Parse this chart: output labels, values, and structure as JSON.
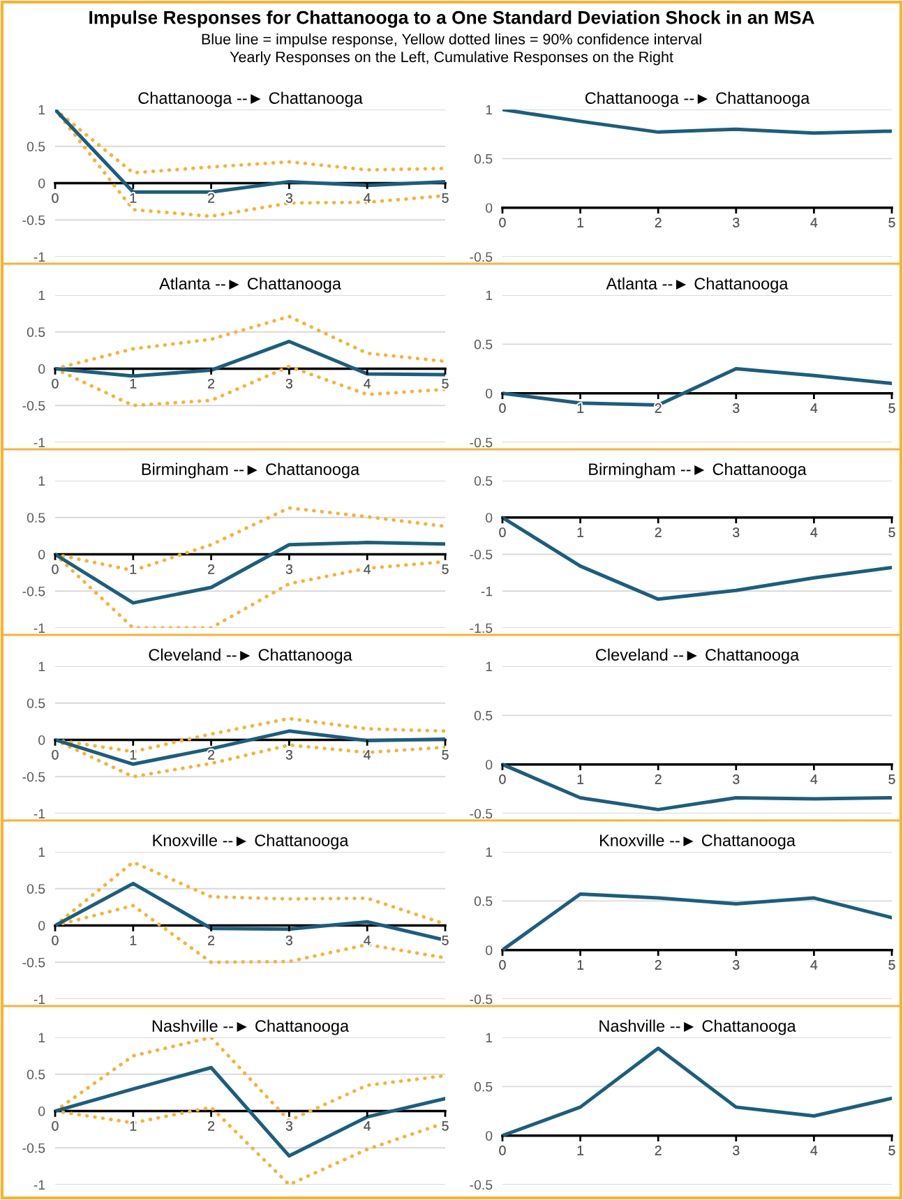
{
  "chart_data": [
    {
      "type": "other",
      "title": "Impulse Responses for Chattanooga to a One Standard Deviation Shock in an MSA",
      "subtitle": "Blue line = impulse response, Yellow dotted lines = 90% confidence interval\nYearly Responses on the Left, Cumulative Responses on the Right"
    },
    {
      "type": "line",
      "title": "Chattanooga --► Chattanooga",
      "x": [
        0,
        1,
        2,
        3,
        4,
        5
      ],
      "xlim": [
        0,
        5
      ],
      "xticks": [
        0,
        1,
        2,
        3,
        4,
        5
      ],
      "ylim": [
        -1,
        1
      ],
      "yticks": [
        -1,
        -0.5,
        0,
        0.5,
        1
      ],
      "grid": "y",
      "series": [
        {
          "color": "#1b5e7e",
          "line_style": "solid",
          "values": [
            1,
            -0.12,
            -0.12,
            0.02,
            -0.03,
            0.02
          ]
        },
        {
          "color": "#f9b233",
          "line_style": "dotted",
          "values": [
            1,
            0.14,
            0.22,
            0.29,
            0.18,
            0.2
          ]
        },
        {
          "color": "#f9b233",
          "line_style": "dotted",
          "values": [
            1,
            -0.36,
            -0.45,
            -0.27,
            -0.26,
            -0.17
          ]
        }
      ]
    },
    {
      "type": "line",
      "title": "Chattanooga --► Chattanooga",
      "x": [
        0,
        1,
        2,
        3,
        4,
        5
      ],
      "xlim": [
        0,
        5
      ],
      "xticks": [
        0,
        1,
        2,
        3,
        4,
        5
      ],
      "ylim": [
        -0.5,
        1
      ],
      "yticks": [
        -0.5,
        0,
        0.5,
        1
      ],
      "grid": "y",
      "series": [
        {
          "color": "#1b5e7e",
          "line_style": "solid",
          "values": [
            1,
            0.88,
            0.77,
            0.8,
            0.76,
            0.78
          ]
        }
      ]
    },
    {
      "type": "line",
      "title": "Atlanta --► Chattanooga",
      "x": [
        0,
        1,
        2,
        3,
        4,
        5
      ],
      "xlim": [
        0,
        5
      ],
      "xticks": [
        0,
        1,
        2,
        3,
        4,
        5
      ],
      "ylim": [
        -1,
        1
      ],
      "yticks": [
        -1,
        -0.5,
        0,
        0.5,
        1
      ],
      "grid": "y",
      "series": [
        {
          "color": "#1b5e7e",
          "line_style": "solid",
          "values": [
            0,
            -0.1,
            -0.02,
            0.37,
            -0.07,
            -0.08
          ]
        },
        {
          "color": "#f9b233",
          "line_style": "dotted",
          "values": [
            0,
            0.27,
            0.4,
            0.71,
            0.21,
            0.1
          ]
        },
        {
          "color": "#f9b233",
          "line_style": "dotted",
          "values": [
            0,
            -0.5,
            -0.43,
            0.03,
            -0.35,
            -0.28
          ]
        }
      ]
    },
    {
      "type": "line",
      "title": "Atlanta --► Chattanooga",
      "x": [
        0,
        1,
        2,
        3,
        4,
        5
      ],
      "xlim": [
        0,
        5
      ],
      "xticks": [
        0,
        1,
        2,
        3,
        4,
        5
      ],
      "ylim": [
        -0.5,
        1
      ],
      "yticks": [
        -0.5,
        0,
        0.5,
        1
      ],
      "grid": "y",
      "series": [
        {
          "color": "#1b5e7e",
          "line_style": "solid",
          "values": [
            0,
            -0.1,
            -0.12,
            0.25,
            0.18,
            0.1
          ]
        }
      ]
    },
    {
      "type": "line",
      "title": "Birmingham --► Chattanooga",
      "x": [
        0,
        1,
        2,
        3,
        4,
        5
      ],
      "xlim": [
        0,
        5
      ],
      "xticks": [
        0,
        1,
        2,
        3,
        4,
        5
      ],
      "ylim": [
        -1,
        1
      ],
      "yticks": [
        -1,
        -0.5,
        0,
        0.5,
        1
      ],
      "grid": "y",
      "series": [
        {
          "color": "#1b5e7e",
          "line_style": "solid",
          "values": [
            0,
            -0.66,
            -0.45,
            0.13,
            0.16,
            0.14
          ]
        },
        {
          "color": "#f9b233",
          "line_style": "dotted",
          "values": [
            0,
            -0.22,
            0.13,
            0.63,
            0.51,
            0.38
          ]
        },
        {
          "color": "#f9b233",
          "line_style": "dotted",
          "values": [
            0,
            -1,
            -1,
            -0.4,
            -0.19,
            -0.1
          ]
        }
      ]
    },
    {
      "type": "line",
      "title": "Birmingham --► Chattanooga",
      "x": [
        0,
        1,
        2,
        3,
        4,
        5
      ],
      "xlim": [
        0,
        5
      ],
      "xticks": [
        0,
        1,
        2,
        3,
        4,
        5
      ],
      "ylim": [
        -1.5,
        0.5
      ],
      "yticks": [
        -1.5,
        -1,
        -0.5,
        0,
        0.5
      ],
      "grid": "y",
      "series": [
        {
          "color": "#1b5e7e",
          "line_style": "solid",
          "values": [
            0,
            -0.66,
            -1.11,
            -0.99,
            -0.82,
            -0.68
          ]
        }
      ]
    },
    {
      "type": "line",
      "title": "Cleveland --► Chattanooga",
      "x": [
        0,
        1,
        2,
        3,
        4,
        5
      ],
      "xlim": [
        0,
        5
      ],
      "xticks": [
        0,
        1,
        2,
        3,
        4,
        5
      ],
      "ylim": [
        -1,
        1
      ],
      "yticks": [
        -1,
        -0.5,
        0,
        0.5,
        1
      ],
      "grid": "y",
      "series": [
        {
          "color": "#1b5e7e",
          "line_style": "solid",
          "values": [
            0,
            -0.33,
            -0.12,
            0.12,
            -0.01,
            0.01
          ]
        },
        {
          "color": "#f9b233",
          "line_style": "dotted",
          "values": [
            0,
            -0.16,
            0.08,
            0.29,
            0.15,
            0.12
          ]
        },
        {
          "color": "#f9b233",
          "line_style": "dotted",
          "values": [
            0,
            -0.5,
            -0.32,
            -0.07,
            -0.17,
            -0.1
          ]
        }
      ]
    },
    {
      "type": "line",
      "title": "Cleveland --► Chattanooga",
      "x": [
        0,
        1,
        2,
        3,
        4,
        5
      ],
      "xlim": [
        0,
        5
      ],
      "xticks": [
        0,
        1,
        2,
        3,
        4,
        5
      ],
      "ylim": [
        -0.5,
        1
      ],
      "yticks": [
        -0.5,
        0,
        0.5,
        1
      ],
      "grid": "y",
      "series": [
        {
          "color": "#1b5e7e",
          "line_style": "solid",
          "values": [
            0,
            -0.34,
            -0.46,
            -0.34,
            -0.35,
            -0.34
          ]
        }
      ]
    },
    {
      "type": "line",
      "title": "Knoxville --► Chattanooga",
      "x": [
        0,
        1,
        2,
        3,
        4,
        5
      ],
      "xlim": [
        0,
        5
      ],
      "xticks": [
        0,
        1,
        2,
        3,
        4,
        5
      ],
      "ylim": [
        -1,
        1
      ],
      "yticks": [
        -1,
        -0.5,
        0,
        0.5,
        1
      ],
      "grid": "y",
      "series": [
        {
          "color": "#1b5e7e",
          "line_style": "solid",
          "values": [
            0,
            0.57,
            -0.04,
            -0.05,
            0.05,
            -0.2
          ]
        },
        {
          "color": "#f9b233",
          "line_style": "dotted",
          "values": [
            0,
            0.86,
            0.39,
            0.36,
            0.37,
            0.02
          ]
        },
        {
          "color": "#f9b233",
          "line_style": "dotted",
          "values": [
            0,
            0.27,
            -0.5,
            -0.49,
            -0.26,
            -0.44
          ]
        }
      ]
    },
    {
      "type": "line",
      "title": "Knoxville --► Chattanooga",
      "x": [
        0,
        1,
        2,
        3,
        4,
        5
      ],
      "xlim": [
        0,
        5
      ],
      "xticks": [
        0,
        1,
        2,
        3,
        4,
        5
      ],
      "ylim": [
        -0.5,
        1
      ],
      "yticks": [
        -0.5,
        0,
        0.5,
        1
      ],
      "grid": "y",
      "series": [
        {
          "color": "#1b5e7e",
          "line_style": "solid",
          "values": [
            0,
            0.57,
            0.53,
            0.47,
            0.53,
            0.33
          ]
        }
      ]
    },
    {
      "type": "line",
      "title": "Nashville --► Chattanooga",
      "x": [
        0,
        1,
        2,
        3,
        4,
        5
      ],
      "xlim": [
        0,
        5
      ],
      "xticks": [
        0,
        1,
        2,
        3,
        4,
        5
      ],
      "ylim": [
        -1,
        1
      ],
      "yticks": [
        -1,
        -0.5,
        0,
        0.5,
        1
      ],
      "grid": "y",
      "series": [
        {
          "color": "#1b5e7e",
          "line_style": "solid",
          "values": [
            0,
            0.3,
            0.59,
            -0.61,
            -0.08,
            0.17
          ]
        },
        {
          "color": "#f9b233",
          "line_style": "dotted",
          "values": [
            0,
            0.75,
            1,
            -0.13,
            0.35,
            0.48
          ]
        },
        {
          "color": "#f9b233",
          "line_style": "dotted",
          "values": [
            0,
            -0.16,
            0.05,
            -1,
            -0.52,
            -0.16
          ]
        }
      ]
    },
    {
      "type": "line",
      "title": "Nashville --► Chattanooga",
      "x": [
        0,
        1,
        2,
        3,
        4,
        5
      ],
      "xlim": [
        0,
        5
      ],
      "xticks": [
        0,
        1,
        2,
        3,
        4,
        5
      ],
      "ylim": [
        -0.5,
        1
      ],
      "yticks": [
        -0.5,
        0,
        0.5,
        1
      ],
      "grid": "y",
      "series": [
        {
          "color": "#1b5e7e",
          "line_style": "solid",
          "values": [
            0,
            0.29,
            0.89,
            0.29,
            0.2,
            0.38
          ]
        }
      ]
    }
  ]
}
